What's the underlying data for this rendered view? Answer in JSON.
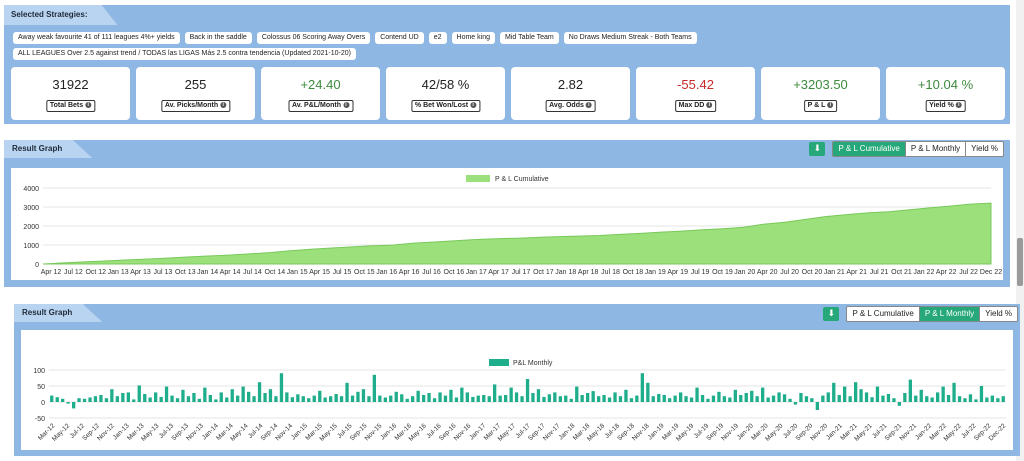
{
  "selected_strategies": {
    "title": "Selected Strategies:",
    "items": [
      "Away weak favourite 41 of 111 leagues 4%+ yields",
      "Back in the saddle",
      "Colossus 06 Scoring Away Overs",
      "Contend UD",
      "e2",
      "Home king",
      "Mid Table Team",
      "No Draws Medium Streak - Both Teams",
      "ALL LEAGUES Over 2.5 against trend / TODAS las LIGAS Más 2.5 contra tendencia (Updated 2021-10-20)"
    ]
  },
  "stats": [
    {
      "value": "31922",
      "label": "Total Bets",
      "tone": "neutral"
    },
    {
      "value": "255",
      "label": "Av. Picks/Month",
      "tone": "neutral"
    },
    {
      "value": "+24.40",
      "label": "Av. P&L/Month",
      "tone": "positive"
    },
    {
      "value": "42/58 %",
      "label": "% Bet Won/Lost",
      "tone": "neutral"
    },
    {
      "value": "2.82",
      "label": "Avg. Odds",
      "tone": "neutral"
    },
    {
      "value": "-55.42",
      "label": "Max DD",
      "tone": "negative"
    },
    {
      "value": "+3203.50",
      "label": "P & L",
      "tone": "positive"
    },
    {
      "value": "+10.04 %",
      "label": "Yield %",
      "tone": "positive"
    }
  ],
  "graph_cumulative": {
    "title": "Result Graph",
    "buttons": [
      "P & L Cumulative",
      "P & L Monthly",
      "Yield %"
    ],
    "active": 0
  },
  "graph_monthly": {
    "title": "Result Graph",
    "buttons": [
      "P & L Cumulative",
      "P & L Monthly",
      "Yield %"
    ],
    "active": 1
  },
  "icons": {
    "download": "download-icon",
    "info": "info-icon"
  },
  "colors": {
    "accent": "#26a87a",
    "cumulative_fill": "#9be07a",
    "monthly_bar": "#1fae8c",
    "panel": "#8eb7e3"
  },
  "chart_data": [
    {
      "type": "area",
      "legend": "P & L Cumulative",
      "ylim": [
        0,
        4000
      ],
      "yticks": [
        0,
        1000,
        2000,
        3000,
        4000
      ],
      "xticks": [
        "Apr 12",
        "Jul 12",
        "Oct 12",
        "Jan 13",
        "Apr 13",
        "Jul 13",
        "Oct 13",
        "Jan 14",
        "Apr 14",
        "Jul 14",
        "Oct 14",
        "Jan 15",
        "Apr 15",
        "Jul 15",
        "Oct 15",
        "Jan 16",
        "Apr 16",
        "Jul 16",
        "Oct 16",
        "Jan 17",
        "Apr 17",
        "Jul 17",
        "Oct 17",
        "Jan 18",
        "Apr 18",
        "Jul 18",
        "Oct 18",
        "Jan 19",
        "Apr 19",
        "Jul 19",
        "Oct 19",
        "Jan 20",
        "Apr 20",
        "Jul 20",
        "Oct 20",
        "Jan 21",
        "Apr 21",
        "Jul 21",
        "Oct 21",
        "Jan 22",
        "Apr 22",
        "Jul 22",
        "Dec 22"
      ],
      "values": [
        0,
        60,
        110,
        160,
        210,
        260,
        310,
        370,
        420,
        470,
        530,
        600,
        700,
        780,
        840,
        900,
        960,
        1000,
        1100,
        1160,
        1220,
        1290,
        1330,
        1360,
        1400,
        1440,
        1470,
        1500,
        1560,
        1610,
        1680,
        1730,
        1800,
        1860,
        1930,
        2100,
        2200,
        2350,
        2500,
        2600,
        2690,
        2750,
        2850,
        2950,
        3050,
        3150,
        3203.5
      ]
    },
    {
      "type": "bar",
      "legend": "P&L Monthly",
      "ylim": [
        -50,
        100
      ],
      "yticks": [
        -50,
        0,
        50,
        100
      ],
      "xticks": [
        "Mar-12",
        "May-12",
        "Jul-12",
        "Sep-12",
        "Nov-12",
        "Jan-13",
        "Mar-13",
        "May-13",
        "Jul-13",
        "Sep-13",
        "Nov-13",
        "Jan-14",
        "Mar-14",
        "May-14",
        "Jul-14",
        "Sep-14",
        "Nov-14",
        "Jan-15",
        "Mar-15",
        "May-15",
        "Jul-15",
        "Sep-15",
        "Nov-15",
        "Jan-16",
        "Mar-16",
        "May-16",
        "Jul-16",
        "Sep-16",
        "Nov-16",
        "Jan-17",
        "Mar-17",
        "May-17",
        "Jul-17",
        "Sep-17",
        "Nov-17",
        "Jan-18",
        "Mar-18",
        "May-18",
        "Jul-18",
        "Sep-18",
        "Nov-18",
        "Jan-19",
        "Mar-19",
        "May-19",
        "Jul-19",
        "Sep-19",
        "Nov-19",
        "Jan-20",
        "Mar-20",
        "May-20",
        "Jul-20",
        "Sep-20",
        "Nov-20",
        "Jan-21",
        "Mar-21",
        "May-21",
        "Jul-21",
        "Sep-21",
        "Nov-21",
        "Jan-22",
        "Mar-22",
        "May-22",
        "Jul-22",
        "Sep-22",
        "Dec-22"
      ],
      "values": [
        20,
        15,
        10,
        -5,
        -20,
        12,
        10,
        14,
        18,
        22,
        12,
        40,
        18,
        28,
        30,
        8,
        52,
        25,
        14,
        30,
        16,
        48,
        20,
        12,
        38,
        18,
        28,
        10,
        45,
        22,
        8,
        30,
        14,
        40,
        20,
        48,
        32,
        18,
        62,
        28,
        40,
        18,
        90,
        30,
        15,
        24,
        18,
        12,
        20,
        35,
        14,
        18,
        25,
        18,
        60,
        20,
        32,
        40,
        18,
        85,
        20,
        14,
        20,
        32,
        24,
        10,
        18,
        35,
        22,
        28,
        12,
        30,
        20,
        38,
        14,
        45,
        30,
        16,
        20,
        22,
        18,
        55,
        20,
        22,
        45,
        30,
        18,
        72,
        28,
        40,
        16,
        24,
        30,
        18,
        20,
        10,
        48,
        22,
        28,
        34,
        18,
        22,
        14,
        30,
        18,
        38,
        12,
        20,
        90,
        60,
        18,
        25,
        22,
        12,
        20,
        30,
        18,
        14,
        45,
        22,
        10,
        20,
        32,
        18,
        14,
        38,
        22,
        28,
        35,
        18,
        45,
        14,
        20,
        30,
        24,
        10,
        -8,
        28,
        18,
        12,
        -25,
        20,
        30,
        60,
        22,
        48,
        18,
        62,
        40,
        30,
        15,
        48,
        20,
        25,
        12,
        -12,
        28,
        70,
        20,
        38,
        18,
        14,
        30,
        48,
        22,
        60,
        18,
        12,
        24,
        8,
        50,
        14,
        20,
        12,
        18
      ]
    }
  ]
}
